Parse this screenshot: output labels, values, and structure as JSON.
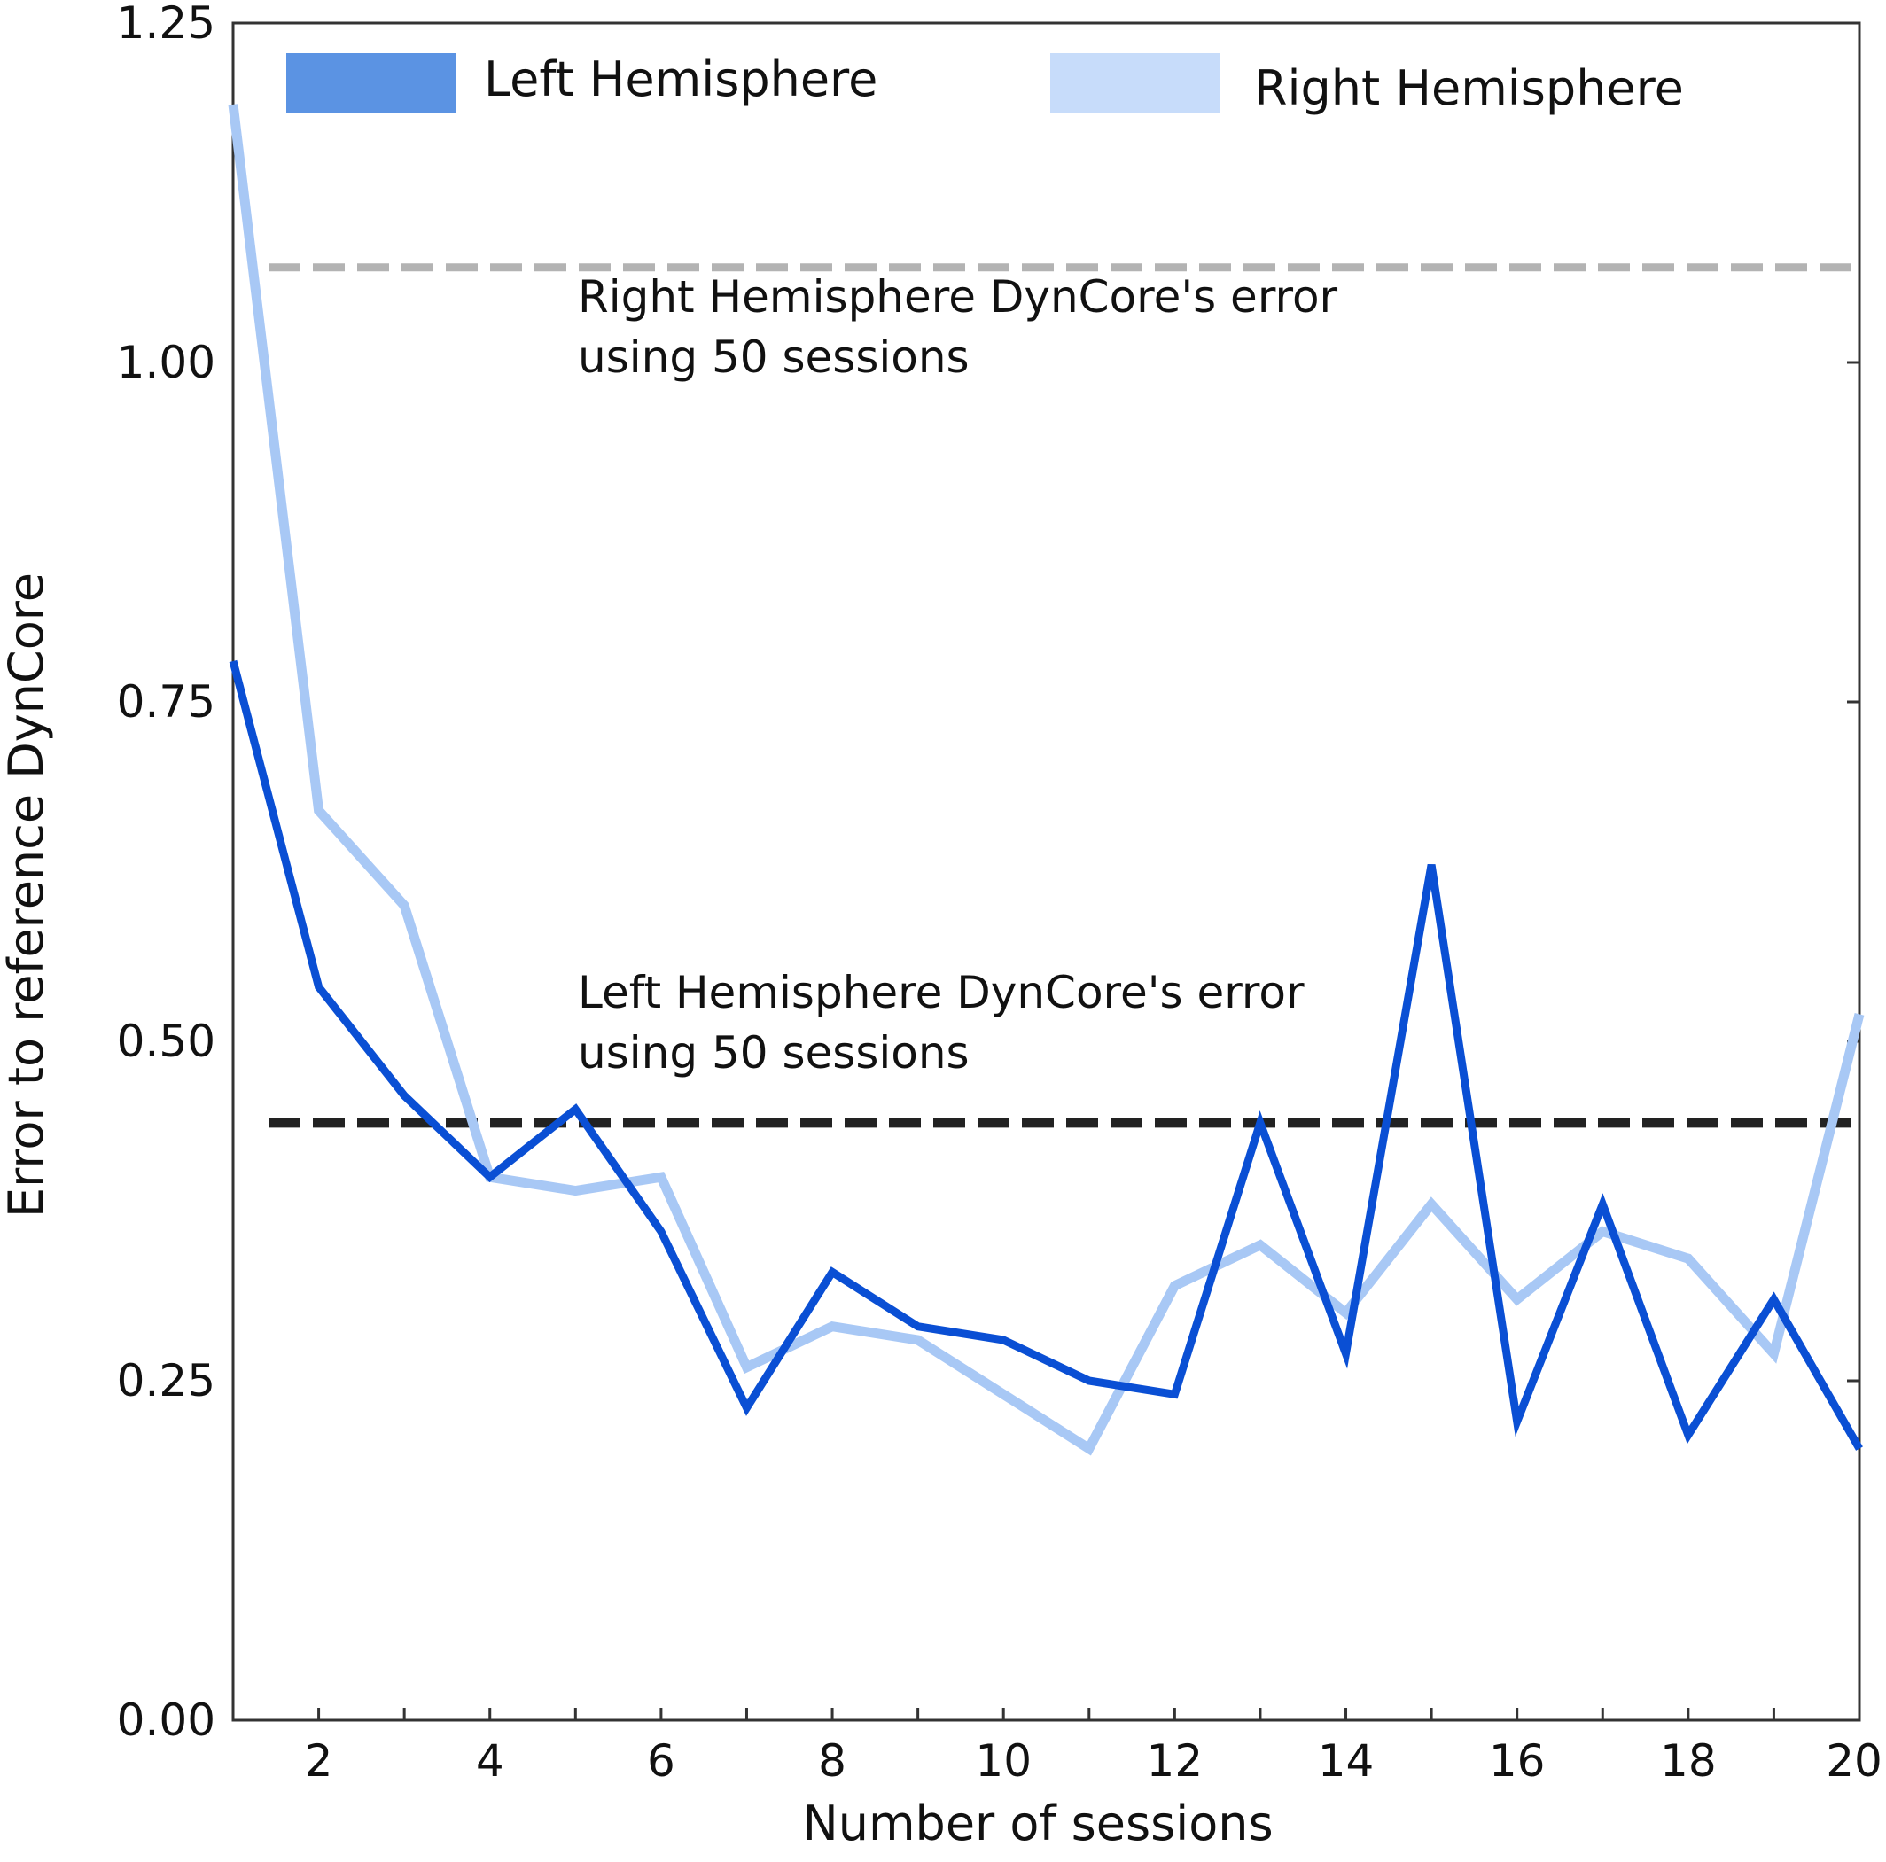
{
  "chart_data": {
    "type": "line",
    "title": "",
    "xlabel": "Number of sessions",
    "ylabel": "Error to reference DynCore",
    "xlim": [
      1,
      20
    ],
    "ylim": [
      0,
      1.25
    ],
    "x_ticks": [
      2,
      4,
      6,
      8,
      10,
      12,
      14,
      16,
      18,
      20
    ],
    "y_ticks": [
      0.0,
      0.25,
      0.5,
      0.75,
      1.0,
      1.25
    ],
    "x_tick_labels": [
      "2",
      "4",
      "6",
      "8",
      "10",
      "12",
      "14",
      "16",
      "18",
      "20"
    ],
    "y_tick_labels": [
      "0.00",
      "0.25",
      "0.50",
      "0.75",
      "1.00",
      "1.25"
    ],
    "grid": false,
    "legend_position": "top",
    "series": [
      {
        "name": "Right Hemisphere",
        "color": "#a8c8f5",
        "x": [
          1,
          2,
          3,
          4,
          5,
          6,
          7,
          8,
          9,
          10,
          11,
          12,
          13,
          14,
          15,
          16,
          17,
          18,
          19,
          20
        ],
        "values": [
          1.19,
          0.67,
          0.6,
          0.4,
          0.39,
          0.4,
          0.26,
          0.29,
          0.28,
          0.24,
          0.2,
          0.32,
          0.35,
          0.3,
          0.38,
          0.31,
          0.36,
          0.34,
          0.27,
          0.52
        ]
      },
      {
        "name": "Left Hemisphere",
        "color": "#0a4fd4",
        "x": [
          1,
          2,
          3,
          4,
          5,
          6,
          7,
          8,
          9,
          10,
          11,
          12,
          13,
          14,
          15,
          16,
          17,
          18,
          19,
          20
        ],
        "values": [
          0.78,
          0.54,
          0.46,
          0.4,
          0.45,
          0.36,
          0.23,
          0.33,
          0.29,
          0.28,
          0.25,
          0.24,
          0.44,
          0.27,
          0.63,
          0.22,
          0.38,
          0.21,
          0.31,
          0.2
        ]
      }
    ],
    "reference_lines": [
      {
        "label_line1": "Right Hemisphere DynCore's error",
        "label_line2": "using 50 sessions",
        "value": 1.07,
        "color": "#b3b3b3"
      },
      {
        "label_line1": "Left Hemisphere DynCore's error",
        "label_line2": "using 50 sessions",
        "value": 0.44,
        "color": "#222222"
      }
    ],
    "legend": [
      {
        "label": "Left Hemisphere",
        "color": "#5b93e3"
      },
      {
        "label": "Right Hemisphere",
        "color": "#c7dcfa"
      }
    ]
  }
}
